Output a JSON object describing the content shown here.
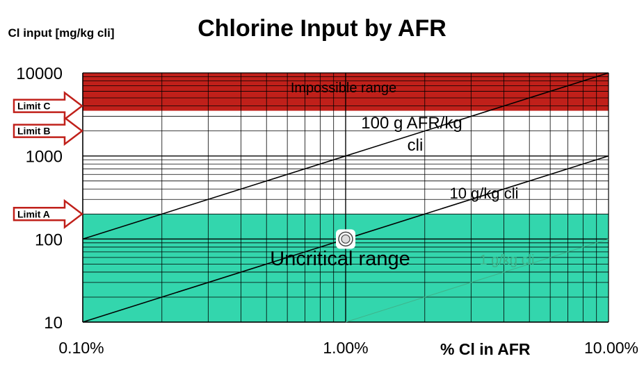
{
  "chart_data": {
    "type": "line",
    "title": "Chlorine Input by AFR",
    "xlabel": "% Cl in AFR",
    "ylabel": "Cl input [mg/kg cli]",
    "x_scale": "log",
    "y_scale": "log",
    "xlim": [
      0.1,
      10
    ],
    "ylim": [
      10,
      10000
    ],
    "x_tick_labels": [
      "0.10%",
      "1.00%",
      "10.00%"
    ],
    "y_tick_labels": [
      "10",
      "100",
      "1000",
      "10000"
    ],
    "grid": true,
    "series": [
      {
        "name": "100 g AFR/kg cli",
        "x": [
          0.1,
          10
        ],
        "y": [
          100,
          10000
        ]
      },
      {
        "name": "10 g/kg cli",
        "x": [
          0.1,
          10
        ],
        "y": [
          10,
          1000
        ]
      },
      {
        "name": "1 g/kg cli",
        "x": [
          1,
          10
        ],
        "y": [
          10,
          100
        ]
      }
    ],
    "regions": [
      {
        "label": "Impossible range",
        "y_from": 3500,
        "y_to": 10000,
        "color": "#c0201a"
      },
      {
        "label": "Uncritical range",
        "y_from": 10,
        "y_to": 200,
        "color": "#0fcf9f"
      }
    ],
    "limits": [
      {
        "label": "Limit C",
        "value": 4000
      },
      {
        "label": "Limit B",
        "value": 2000
      },
      {
        "label": "Limit A",
        "value": 200
      }
    ],
    "marker": {
      "x": 1,
      "y": 100
    }
  }
}
